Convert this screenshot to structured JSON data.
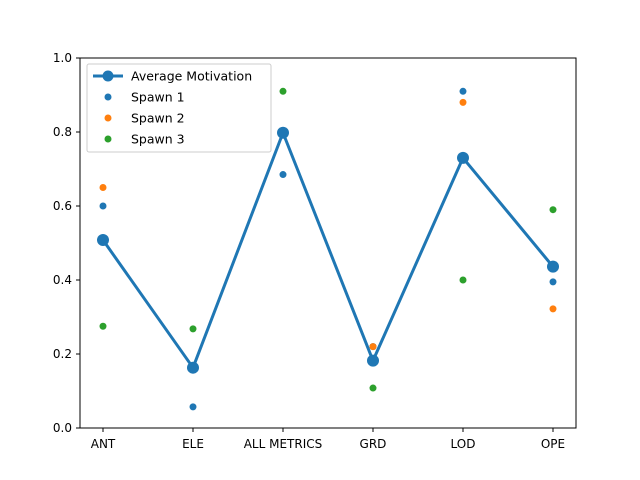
{
  "chart_data": {
    "type": "line",
    "title": "",
    "xlabel": "",
    "ylabel": "",
    "categories": [
      "ANT",
      "ELE",
      "ALL METRICS",
      "GRD",
      "LOD",
      "OPE"
    ],
    "ylim": [
      0,
      1
    ],
    "yticks": [
      0.0,
      0.2,
      0.4,
      0.6,
      0.8,
      1.0
    ],
    "ytick_labels": [
      "0.0",
      "0.2",
      "0.4",
      "0.6",
      "0.8",
      "1.0"
    ],
    "grid": false,
    "legend_position": "upper-left",
    "line_series": {
      "name": "Average Motivation",
      "color": "#1f77b4",
      "values": [
        0.508,
        0.163,
        0.798,
        0.182,
        0.73,
        0.436
      ]
    },
    "scatter_series": [
      {
        "name": "Spawn 1",
        "color": "#1f77b4",
        "values": [
          0.6,
          0.057,
          0.685,
          0.22,
          0.91,
          0.395
        ]
      },
      {
        "name": "Spawn 2",
        "color": "#ff7f0e",
        "values": [
          0.65,
          null,
          null,
          0.22,
          0.88,
          0.322
        ]
      },
      {
        "name": "Spawn 3",
        "color": "#2ca02c",
        "values": [
          0.275,
          0.268,
          0.91,
          0.108,
          0.4,
          0.59
        ]
      }
    ]
  }
}
